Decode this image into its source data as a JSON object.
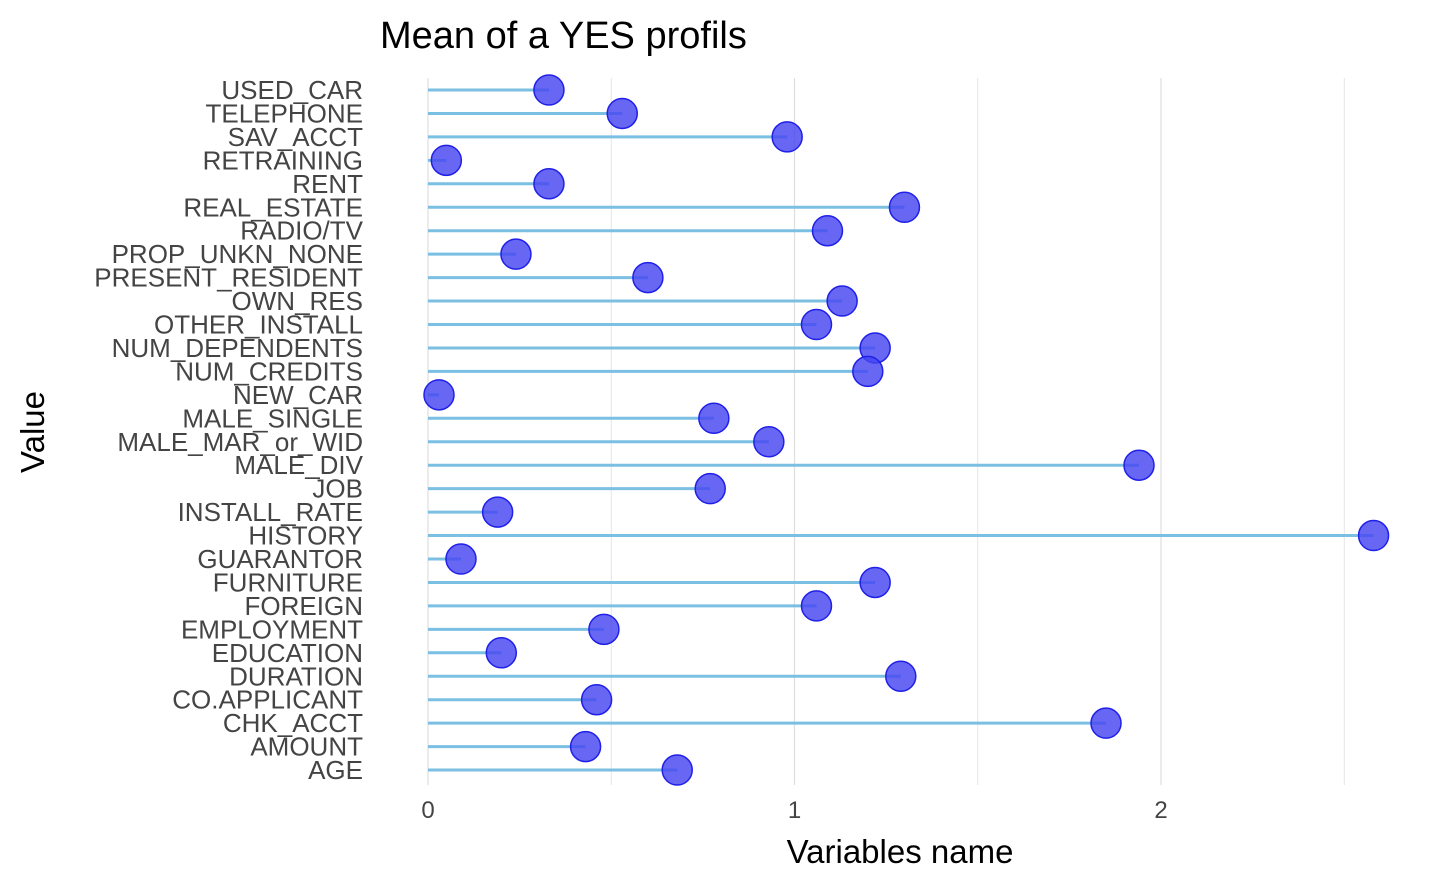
{
  "chart_data": {
    "type": "lollipop",
    "title": "Mean of a YES profils",
    "xlabel": "Variables name",
    "ylabel": "Value",
    "xlim": [
      0,
      2.6
    ],
    "xticks": [
      0,
      1,
      2
    ],
    "tick_labels": [
      "0",
      "1",
      "2"
    ],
    "grid": "vertical",
    "categories": [
      "USED_CAR",
      "TELEPHONE",
      "SAV_ACCT",
      "RETRAINING",
      "RENT",
      "REAL_ESTATE",
      "RADIO/TV",
      "PROP_UNKN_NONE",
      "PRESENT_RESIDENT",
      "OWN_RES",
      "OTHER_INSTALL",
      "NUM_DEPENDENTS",
      "NUM_CREDITS",
      "NEW_CAR",
      "MALE_SINGLE",
      "MALE_MAR_or_WID",
      "MALE_DIV",
      "JOB",
      "INSTALL_RATE",
      "HISTORY",
      "GUARANTOR",
      "FURNITURE",
      "FOREIGN",
      "EMPLOYMENT",
      "EDUCATION",
      "DURATION",
      "CO.APPLICANT",
      "CHK_ACCT",
      "AMOUNT",
      "AGE"
    ],
    "values": [
      0.33,
      0.53,
      0.98,
      0.05,
      0.33,
      1.3,
      1.09,
      0.24,
      0.6,
      1.13,
      1.06,
      1.22,
      1.2,
      0.03,
      0.78,
      0.93,
      1.94,
      0.77,
      0.19,
      2.58,
      0.09,
      1.22,
      1.06,
      0.48,
      0.2,
      1.29,
      0.46,
      1.85,
      0.43,
      0.68
    ],
    "colors": {
      "stem": "#7BBFE2",
      "point_fill": "#4646F2",
      "point_stroke": "#2020E8",
      "grid": "#DEDEDE"
    }
  }
}
